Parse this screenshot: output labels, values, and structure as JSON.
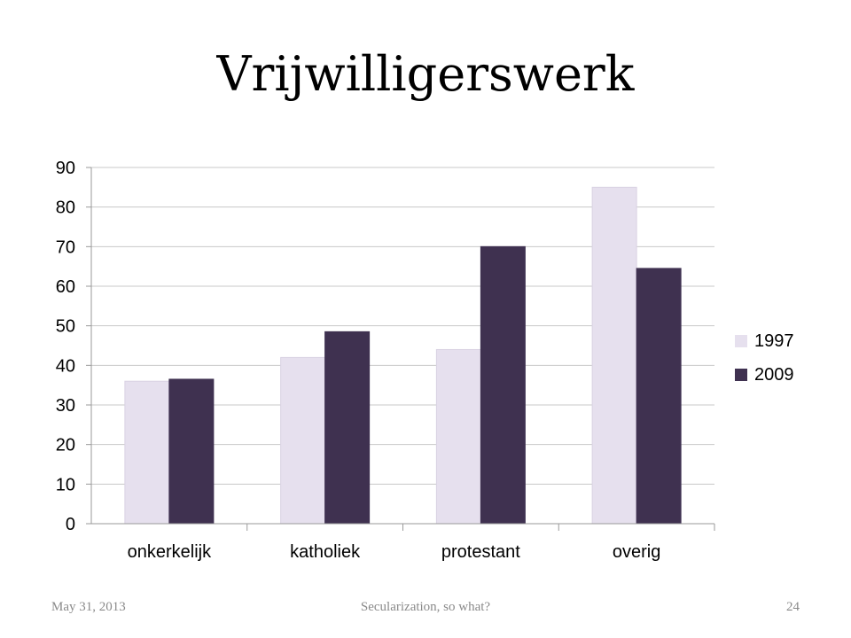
{
  "slide": {
    "title": "Vrijwilligerswerk"
  },
  "footer": {
    "date": "May 31, 2013",
    "center": "Secularization, so what?",
    "page": "24"
  },
  "chart_data": {
    "type": "bar",
    "categories": [
      "onkerkelijk",
      "katholiek",
      "protestant",
      "overig"
    ],
    "series": [
      {
        "name": "1997",
        "values": [
          36,
          42,
          44,
          85
        ],
        "color": "#e6e0ee"
      },
      {
        "name": "2009",
        "values": [
          36.5,
          48.5,
          70,
          64.5
        ],
        "color": "#3f3150"
      }
    ],
    "title": "",
    "xlabel": "",
    "ylabel": "",
    "ylim": [
      0,
      90
    ],
    "yticks": [
      0,
      10,
      20,
      30,
      40,
      50,
      60,
      70,
      80,
      90
    ],
    "grid": true,
    "legend": "right"
  }
}
